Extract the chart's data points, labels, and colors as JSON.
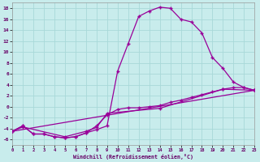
{
  "xlabel": "Windchill (Refroidissement éolien,°C)",
  "bg_color": "#c8ecec",
  "grid_color": "#a8d8d8",
  "line_color": "#990099",
  "xlim": [
    0,
    23
  ],
  "ylim": [
    -7,
    19
  ],
  "xticks": [
    0,
    1,
    2,
    3,
    4,
    5,
    6,
    7,
    8,
    9,
    10,
    11,
    12,
    13,
    14,
    15,
    16,
    17,
    18,
    19,
    20,
    21,
    22,
    23
  ],
  "yticks": [
    -6,
    -4,
    -2,
    0,
    2,
    4,
    6,
    8,
    10,
    12,
    14,
    16,
    18
  ],
  "curve1_x": [
    0,
    1,
    2,
    3,
    4,
    5,
    6,
    7,
    8,
    9,
    10,
    11,
    12,
    13,
    14,
    15,
    16,
    17,
    18,
    19,
    20,
    21,
    22,
    23
  ],
  "curve1_y": [
    -4.5,
    -3.5,
    -5.0,
    -5.0,
    -5.5,
    -5.7,
    -5.5,
    -4.8,
    -4.2,
    -3.5,
    6.5,
    11.5,
    16.5,
    17.5,
    18.2,
    18.0,
    16.0,
    15.5,
    13.5,
    9.0,
    7.0,
    4.5,
    3.5,
    3.0
  ],
  "curve2_x": [
    0,
    1,
    2,
    3,
    4,
    5,
    6,
    7,
    8,
    9,
    10,
    11,
    12,
    13,
    14,
    15,
    16,
    17,
    18,
    19,
    20,
    21,
    22,
    23
  ],
  "curve2_y": [
    -4.5,
    -3.5,
    -5.0,
    -5.0,
    -5.5,
    -5.7,
    -5.5,
    -4.8,
    -3.5,
    -1.5,
    -0.5,
    -0.2,
    -0.2,
    -0.0,
    0.2,
    0.8,
    1.2,
    1.7,
    2.2,
    2.7,
    3.2,
    3.5,
    3.5,
    3.0
  ],
  "curve3_x": [
    0,
    1,
    5,
    7,
    8,
    9,
    14,
    20,
    23
  ],
  "curve3_y": [
    -4.5,
    -3.7,
    -5.5,
    -4.5,
    -3.8,
    -1.2,
    -0.3,
    3.2,
    3.0
  ],
  "curve4_x": [
    0,
    23
  ],
  "curve4_y": [
    -4.5,
    3.0
  ]
}
